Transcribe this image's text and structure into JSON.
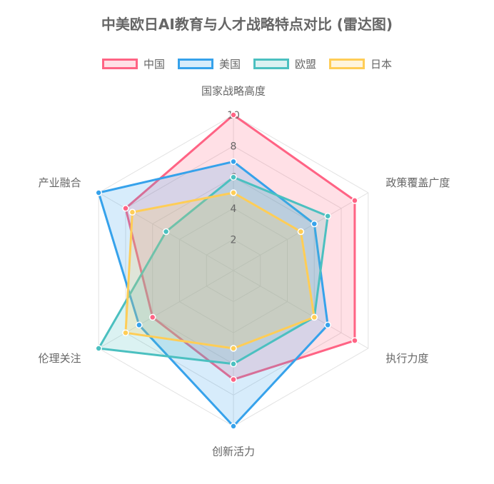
{
  "chart_data": {
    "type": "radar",
    "title": "中美欧日AI教育与人才战略特点对比 (雷达图)",
    "axes": [
      "国家战略高度",
      "政策覆盖广度",
      "执行力度",
      "创新活力",
      "伦理关注",
      "产业融合"
    ],
    "range": [
      0,
      10
    ],
    "ticks": [
      2,
      4,
      6,
      8,
      10
    ],
    "series": [
      {
        "name": "中国",
        "values": [
          10,
          9,
          9,
          7,
          6,
          8
        ],
        "color": "#ff6384",
        "fill": "rgba(255,99,132,0.2)"
      },
      {
        "name": "美国",
        "values": [
          7,
          6,
          7,
          10,
          7,
          10
        ],
        "color": "#36a2eb",
        "fill": "rgba(54,162,235,0.2)"
      },
      {
        "name": "欧盟",
        "values": [
          6,
          7,
          6,
          6,
          10,
          5
        ],
        "color": "#4bc0c0",
        "fill": "rgba(75,192,192,0.2)"
      },
      {
        "name": "日本",
        "values": [
          5,
          5,
          6,
          5,
          8,
          7.5
        ],
        "color": "#ffcd56",
        "fill": "rgba(255,205,86,0.2)"
      }
    ]
  }
}
